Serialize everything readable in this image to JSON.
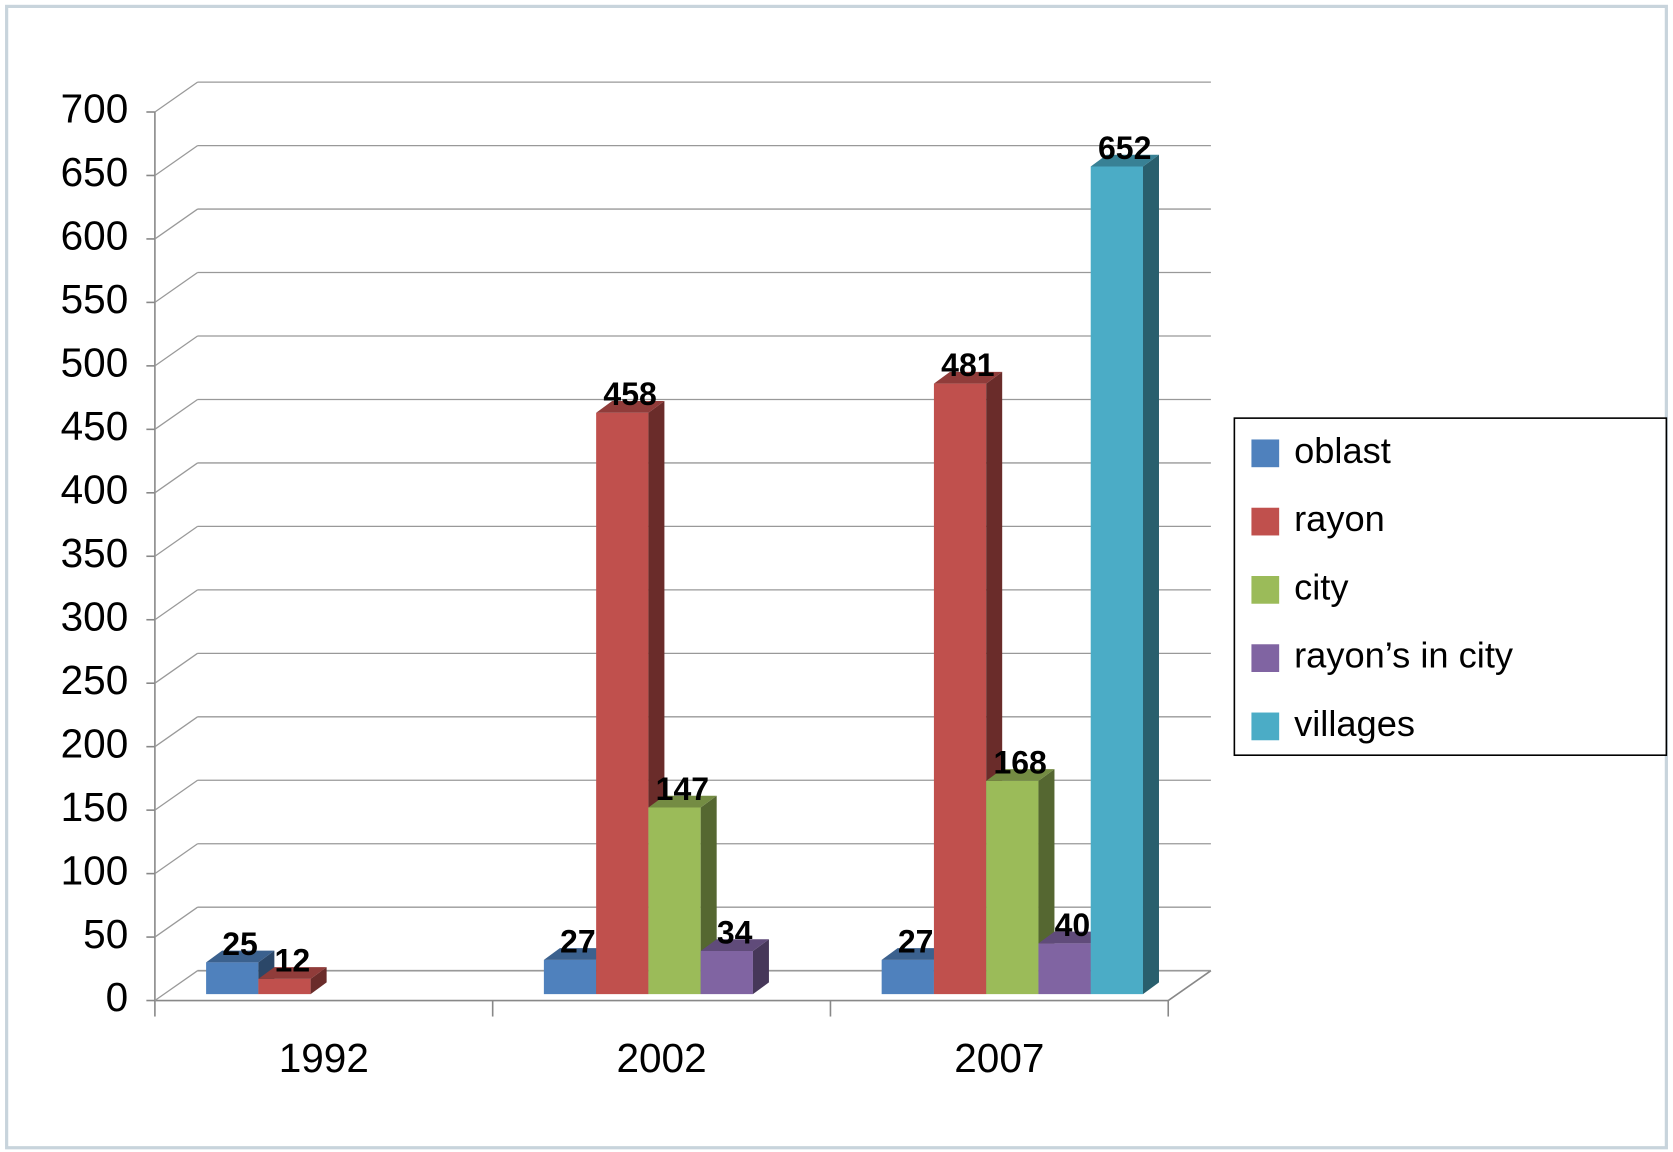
{
  "chart_data": {
    "type": "bar3d",
    "categories": [
      "1992",
      "2002",
      "2007"
    ],
    "series": [
      {
        "name": "oblast",
        "color": "#4f81bd",
        "values": [
          25,
          27,
          27
        ]
      },
      {
        "name": "rayon",
        "color": "#c0504d",
        "values": [
          12,
          458,
          481
        ]
      },
      {
        "name": "city",
        "color": "#9bbb59",
        "values": [
          null,
          147,
          168
        ]
      },
      {
        "name": "rayon’s in city",
        "color": "#8064a2",
        "values": [
          null,
          34,
          40
        ]
      },
      {
        "name": "villages",
        "color": "#4bacc6",
        "values": [
          null,
          null,
          652
        ]
      }
    ],
    "ylim": [
      0,
      700
    ],
    "yticks": [
      0,
      50,
      100,
      150,
      200,
      250,
      300,
      350,
      400,
      450,
      500,
      550,
      600,
      650,
      700
    ],
    "grid": true,
    "legend": "right"
  }
}
